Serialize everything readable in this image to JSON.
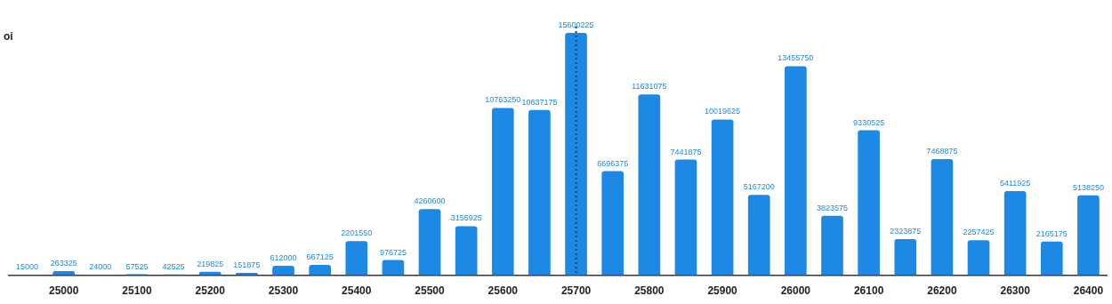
{
  "chart_data": {
    "type": "bar",
    "ylabel": "oi",
    "categories": [
      null,
      "25000",
      null,
      "25100",
      null,
      "25200",
      null,
      "25300",
      null,
      "25400",
      null,
      "25500",
      null,
      "25600",
      null,
      "25700",
      null,
      "25800",
      null,
      "25900",
      null,
      "26000",
      null,
      "26100",
      null,
      "26200",
      null,
      "26300",
      null,
      "26400"
    ],
    "values": [
      15000,
      263325,
      24000,
      57525,
      42525,
      219825,
      151875,
      612000,
      667125,
      2201550,
      976725,
      4260600,
      3155925,
      10763250,
      10637175,
      15600225,
      6696375,
      11631075,
      7441875,
      10019625,
      5167200,
      13455750,
      3823575,
      9330525,
      2323875,
      7468875,
      2257425,
      5411925,
      2165175,
      5138250
    ],
    "color": "#1e88e5",
    "data_labels": true,
    "tick_labels": "x",
    "ref_lines": [
      {
        "axis": "x",
        "value": "25700",
        "color": "#1a3a6b",
        "line_style": "dotted"
      }
    ]
  }
}
